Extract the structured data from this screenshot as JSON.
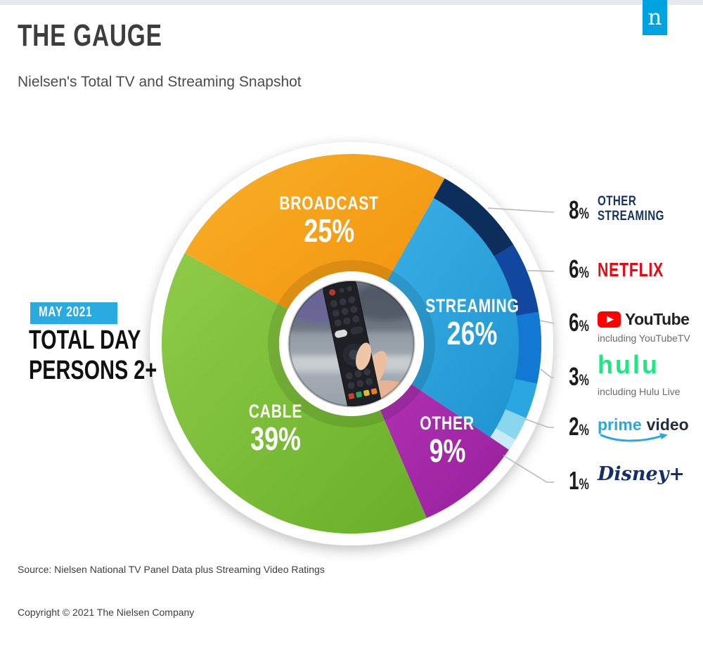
{
  "header": {
    "title": "THE GAUGE",
    "subtitle": "Nielsen's Total TV and Streaming Snapshot",
    "logo_letter": "n"
  },
  "side": {
    "badge": "MAY 2021",
    "line1": "TOTAL DAY",
    "line2": "PERSONS 2+"
  },
  "footer": {
    "source": "Source: Nielsen National TV Panel Data plus Streaming Video Ratings",
    "copyright": "Copyright © 2021 The Nielsen Company"
  },
  "colors": {
    "nielsen_blue": "#00A3E0",
    "badge_cyan": "#29ABE2",
    "leader_gray": "#B6BABF",
    "title_gray": "#3D3D3D",
    "navy_label": "#14345E",
    "netflix_red": "#E50914",
    "youtube_red": "#FF0000",
    "youtube_text": "#212121",
    "hulu_green": "#1CE783",
    "prime_blue": "#29A8DF",
    "prime_dark": "#232F3E",
    "disney_navy": "#142F6B"
  },
  "chart_data": {
    "type": "pie",
    "title": "The Gauge — Nielsen's Total TV and Streaming Snapshot",
    "period": "May 2021",
    "population": "Total Day, Persons 2+",
    "units": "percent of total TV viewing time",
    "donut": true,
    "center_image_alt": "hand holding a TV remote in front of a television",
    "legend_position": "right",
    "start_angle_deg": -61.5,
    "segments": [
      {
        "label": "BROADCAST",
        "value": 25,
        "display": "25%",
        "color_light": "#F9B02A",
        "color_dark": "#F18F07"
      },
      {
        "label": "STREAMING",
        "value": 26,
        "display": "26%",
        "color_light": "#3FB4EA",
        "color_dark": "#1B90CC"
      },
      {
        "label": "OTHER",
        "value": 9,
        "display": "9%",
        "color_light": "#B535B9",
        "color_dark": "#97209B"
      },
      {
        "label": "CABLE",
        "value": 39,
        "display": "39%",
        "color_light": "#8FCB49",
        "color_dark": "#68AF28"
      }
    ],
    "streaming_breakdown": [
      {
        "label": "OTHER STREAMING",
        "value": 8,
        "display": "8%",
        "color": "#0D2D5B"
      },
      {
        "label": "NETFLIX",
        "value": 6,
        "display": "6%",
        "color": "#1247A0"
      },
      {
        "label": "YOUTUBE",
        "value": 6,
        "display": "6%",
        "color": "#1377D4"
      },
      {
        "label": "HULU",
        "value": 3,
        "display": "3%",
        "color": "#2AA6E0"
      },
      {
        "label": "PRIME VIDEO",
        "value": 2,
        "display": "2%",
        "color": "#8AD6EE"
      },
      {
        "label": "DISNEY+",
        "value": 1,
        "display": "1%",
        "color": "#C9EBF7"
      }
    ]
  },
  "legend": [
    {
      "pct": "8%",
      "type": "text2",
      "lines": [
        "OTHER",
        "STREAMING"
      ]
    },
    {
      "pct": "6%",
      "type": "netflix",
      "text": "NETFLIX"
    },
    {
      "pct": "6%",
      "type": "youtube",
      "text": "YouTube",
      "sub": "including YouTubeTV"
    },
    {
      "pct": "3%",
      "type": "hulu",
      "text": "hulu",
      "sub": "including Hulu Live"
    },
    {
      "pct": "2%",
      "type": "prime",
      "text1": "prime",
      "text2": "video"
    },
    {
      "pct": "1%",
      "type": "disney",
      "text": "Disney+"
    }
  ]
}
